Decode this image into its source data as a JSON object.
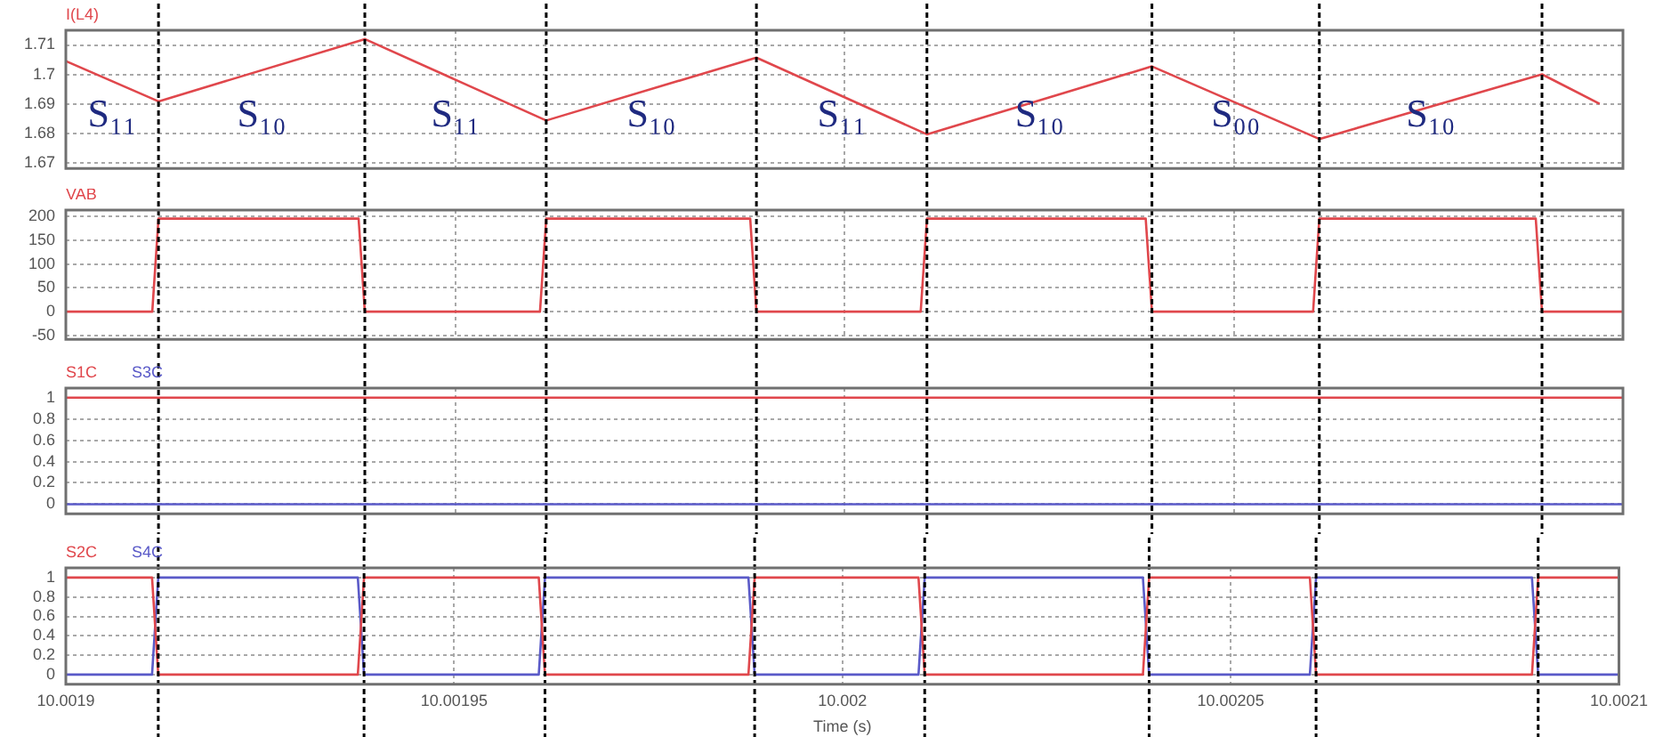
{
  "chart_data": [
    {
      "type": "line",
      "marker": "none",
      "grid": true,
      "legend": "top left",
      "tick_labels": "y",
      "series": [
        {
          "name": "I(L4)",
          "color": "#e0474c",
          "x": [
            10.0019,
            10.0019119,
            10.0019384,
            10.0019617,
            10.0019887,
            10.0020106,
            10.0020395,
            10.002061,
            10.0020896,
            10.002097
          ],
          "values": [
            1.7045,
            1.6908,
            1.712,
            1.6843,
            1.7057,
            1.6796,
            1.7027,
            1.678,
            1.7,
            1.69
          ]
        }
      ],
      "xlim": [
        10.0019,
        10.0021
      ],
      "xticks": [
        10.0019,
        10.00195,
        10.002,
        10.00205,
        10.0021
      ],
      "ylim": [
        1.668,
        1.715
      ],
      "yticks": [
        1.67,
        1.68,
        1.69,
        1.7,
        1.71
      ],
      "ref_lines": [
        {
          "axis": "x",
          "value": 10.0019119,
          "color": "#000000",
          "line_style": "dashed"
        },
        {
          "axis": "x",
          "value": 10.0019384,
          "color": "#000000",
          "line_style": "dashed"
        },
        {
          "axis": "x",
          "value": 10.0019617,
          "color": "#000000",
          "line_style": "dashed"
        },
        {
          "axis": "x",
          "value": 10.0019887,
          "color": "#000000",
          "line_style": "dashed"
        },
        {
          "axis": "x",
          "value": 10.0020106,
          "color": "#000000",
          "line_style": "dashed"
        },
        {
          "axis": "x",
          "value": 10.0020395,
          "color": "#000000",
          "line_style": "dashed"
        },
        {
          "axis": "x",
          "value": 10.002061,
          "color": "#000000",
          "line_style": "dashed"
        },
        {
          "axis": "x",
          "value": 10.0020896,
          "color": "#000000",
          "line_style": "dashed"
        }
      ],
      "annotations": [
        "S₁₁",
        "S₁₀",
        "S₁₁",
        "S₁₀",
        "S₁₁",
        "S₁₀",
        "S₀₀",
        "S₁₀"
      ]
    },
    {
      "type": "line",
      "marker": "none",
      "grid": true,
      "legend": "top left",
      "tick_labels": "y",
      "series": [
        {
          "name": "VAB",
          "color": "#e0474c",
          "x": [
            10.0019,
            10.0019111,
            10.0019119,
            10.0019376,
            10.0019384,
            10.0019609,
            10.0019617,
            10.0019879,
            10.0019887,
            10.0020098,
            10.0020106,
            10.0020387,
            10.0020395,
            10.0020602,
            10.002061,
            10.0020888,
            10.0020896,
            10.0021
          ],
          "values": [
            0,
            0,
            195,
            195,
            0,
            0,
            195,
            195,
            0,
            0,
            195,
            195,
            0,
            0,
            195,
            195,
            0,
            0
          ]
        }
      ],
      "xlim": [
        10.0019,
        10.0021
      ],
      "xticks": [
        10.0019,
        10.00195,
        10.002,
        10.00205,
        10.0021
      ],
      "ylim": [
        -58,
        213
      ],
      "yticks": [
        -50,
        0,
        50,
        100,
        150,
        200
      ],
      "ref_lines": [
        {
          "axis": "x",
          "value": 10.0019119,
          "color": "#000000",
          "line_style": "dashed"
        },
        {
          "axis": "x",
          "value": 10.0019384,
          "color": "#000000",
          "line_style": "dashed"
        },
        {
          "axis": "x",
          "value": 10.0019617,
          "color": "#000000",
          "line_style": "dashed"
        },
        {
          "axis": "x",
          "value": 10.0019887,
          "color": "#000000",
          "line_style": "dashed"
        },
        {
          "axis": "x",
          "value": 10.0020106,
          "color": "#000000",
          "line_style": "dashed"
        },
        {
          "axis": "x",
          "value": 10.0020395,
          "color": "#000000",
          "line_style": "dashed"
        },
        {
          "axis": "x",
          "value": 10.002061,
          "color": "#000000",
          "line_style": "dashed"
        },
        {
          "axis": "x",
          "value": 10.0020896,
          "color": "#000000",
          "line_style": "dashed"
        }
      ]
    },
    {
      "type": "line",
      "marker": "none",
      "grid": true,
      "legend": "top left",
      "tick_labels": "y",
      "series": [
        {
          "name": "S1C",
          "color": "#e0474c",
          "x": [
            10.0019,
            10.0021
          ],
          "values": [
            1,
            1
          ]
        },
        {
          "name": "S3C",
          "color": "#5a5ac8",
          "x": [
            10.0019,
            10.0021
          ],
          "values": [
            0,
            0
          ]
        }
      ],
      "xlim": [
        10.0019,
        10.0021
      ],
      "xticks": [
        10.0019,
        10.00195,
        10.002,
        10.00205,
        10.0021
      ],
      "ylim": [
        -0.09,
        1.09
      ],
      "yticks": [
        0,
        0.2,
        0.4,
        0.6,
        0.8,
        1
      ],
      "ref_lines": [
        {
          "axis": "x",
          "value": 10.0019119,
          "color": "#000000",
          "line_style": "dashed"
        },
        {
          "axis": "x",
          "value": 10.0019384,
          "color": "#000000",
          "line_style": "dashed"
        },
        {
          "axis": "x",
          "value": 10.0019617,
          "color": "#000000",
          "line_style": "dashed"
        },
        {
          "axis": "x",
          "value": 10.0019887,
          "color": "#000000",
          "line_style": "dashed"
        },
        {
          "axis": "x",
          "value": 10.0020106,
          "color": "#000000",
          "line_style": "dashed"
        },
        {
          "axis": "x",
          "value": 10.0020395,
          "color": "#000000",
          "line_style": "dashed"
        },
        {
          "axis": "x",
          "value": 10.002061,
          "color": "#000000",
          "line_style": "dashed"
        },
        {
          "axis": "x",
          "value": 10.0020896,
          "color": "#000000",
          "line_style": "dashed"
        }
      ]
    },
    {
      "type": "line",
      "marker": "none",
      "grid": true,
      "legend": "top left",
      "xlabel": "Time (s)",
      "series": [
        {
          "name": "S2C",
          "color": "#e0474c",
          "x": [
            10.0019,
            10.0019111,
            10.0019119,
            10.0019376,
            10.0019384,
            10.0019609,
            10.0019617,
            10.0019879,
            10.0019887,
            10.0020098,
            10.0020106,
            10.0020387,
            10.0020395,
            10.0020602,
            10.002061,
            10.0020888,
            10.0020896,
            10.0021
          ],
          "values": [
            1,
            1,
            0,
            0,
            1,
            1,
            0,
            0,
            1,
            1,
            0,
            0,
            1,
            1,
            0,
            0,
            1,
            1
          ]
        },
        {
          "name": "S4C",
          "color": "#5a5ac8",
          "x": [
            10.0019,
            10.0019111,
            10.0019119,
            10.0019376,
            10.0019384,
            10.0019609,
            10.0019617,
            10.0019879,
            10.0019887,
            10.0020098,
            10.0020106,
            10.0020387,
            10.0020395,
            10.0020602,
            10.002061,
            10.0020888,
            10.0020896,
            10.0021
          ],
          "values": [
            0,
            0,
            1,
            1,
            0,
            0,
            1,
            1,
            0,
            0,
            1,
            1,
            0,
            0,
            1,
            1,
            0,
            0
          ]
        }
      ],
      "xlim": [
        10.0019,
        10.0021
      ],
      "xticks": [
        10.0019,
        10.00195,
        10.002,
        10.00205,
        10.0021
      ],
      "ylim": [
        -0.1,
        1.1
      ],
      "yticks": [
        0,
        0.2,
        0.4,
        0.6,
        0.8,
        1
      ],
      "ref_lines": [
        {
          "axis": "x",
          "value": 10.0019119,
          "color": "#000000",
          "line_style": "dashed"
        },
        {
          "axis": "x",
          "value": 10.0019384,
          "color": "#000000",
          "line_style": "dashed"
        },
        {
          "axis": "x",
          "value": 10.0019617,
          "color": "#000000",
          "line_style": "dashed"
        },
        {
          "axis": "x",
          "value": 10.0019887,
          "color": "#000000",
          "line_style": "dashed"
        },
        {
          "axis": "x",
          "value": 10.0020106,
          "color": "#000000",
          "line_style": "dashed"
        },
        {
          "axis": "x",
          "value": 10.0020395,
          "color": "#000000",
          "line_style": "dashed"
        },
        {
          "axis": "x",
          "value": 10.002061,
          "color": "#000000",
          "line_style": "dashed"
        },
        {
          "axis": "x",
          "value": 10.0020896,
          "color": "#000000",
          "line_style": "dashed"
        }
      ]
    }
  ]
}
